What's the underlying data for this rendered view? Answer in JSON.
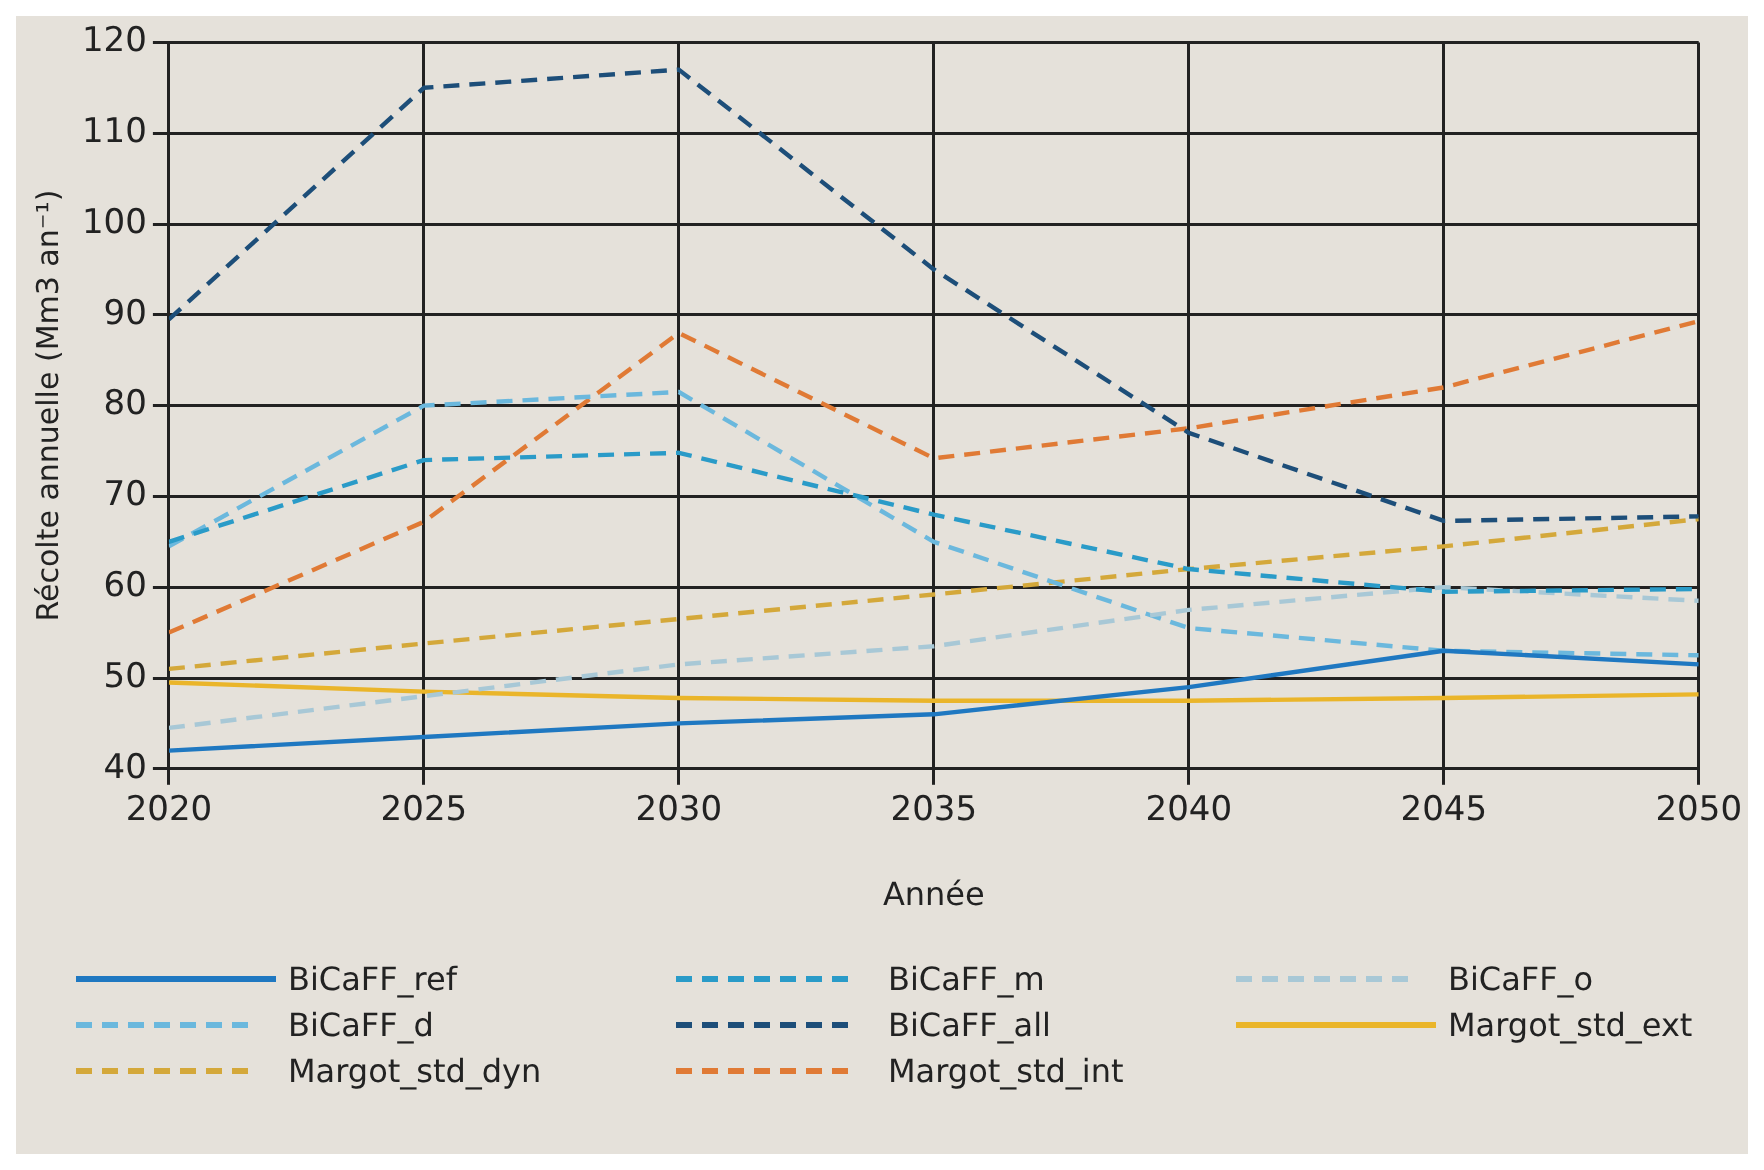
{
  "chart_data": {
    "type": "line",
    "xlabel": "Année",
    "ylabel": "Récolte annuelle (Mm3 an⁻¹)",
    "x": [
      2020,
      2025,
      2030,
      2035,
      2040,
      2045,
      2050
    ],
    "xlim": [
      2020,
      2050
    ],
    "xticks": [
      2020,
      2025,
      2030,
      2035,
      2040,
      2045,
      2050
    ],
    "ylim": [
      40,
      120
    ],
    "yticks": [
      40,
      50,
      60,
      70,
      80,
      90,
      100,
      110,
      120
    ],
    "grid": true,
    "legend": "bottom",
    "marker": "none",
    "series": [
      {
        "name": "BiCaFF_ref",
        "color": "#1f78c1",
        "line_style": "solid",
        "values": [
          42,
          43.5,
          45,
          46,
          49,
          53,
          51.5
        ]
      },
      {
        "name": "BiCaFF_m",
        "color": "#2a9bc8",
        "line_style": "dashed",
        "values": [
          65,
          74,
          74.8,
          68,
          62,
          59.5,
          59.8
        ]
      },
      {
        "name": "BiCaFF_o",
        "color": "#a8c8d6",
        "line_style": "dashed",
        "values": [
          44.5,
          48,
          51.5,
          53.5,
          57.5,
          60,
          58.5
        ]
      },
      {
        "name": "BiCaFF_d",
        "color": "#6bb8dd",
        "line_style": "dashed",
        "values": [
          64.5,
          80,
          81.5,
          65,
          55.5,
          53,
          52.5
        ]
      },
      {
        "name": "BiCaFF_all",
        "color": "#1d4e79",
        "line_style": "dashed",
        "values": [
          89.5,
          115,
          117,
          95,
          77,
          67.3,
          67.8
        ]
      },
      {
        "name": "Margot_std_ext",
        "color": "#eab52a",
        "line_style": "solid",
        "values": [
          49.5,
          48.5,
          47.8,
          47.5,
          47.5,
          47.8,
          48.2
        ]
      },
      {
        "name": "Margot_std_dyn",
        "color": "#d4a83a",
        "line_style": "dashed",
        "values": [
          51,
          53.8,
          56.5,
          59.2,
          62,
          64.5,
          67.5
        ]
      },
      {
        "name": "Margot_std_int",
        "color": "#e07a35",
        "line_style": "dashed",
        "values": [
          55,
          67.2,
          88,
          74.2,
          77.5,
          82,
          89.3
        ]
      }
    ]
  }
}
